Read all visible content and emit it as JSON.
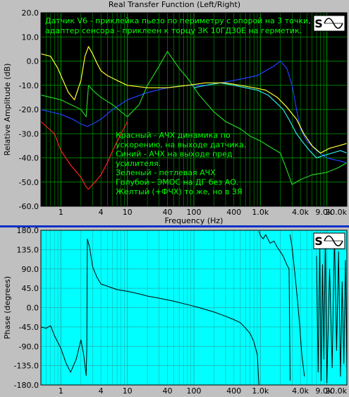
{
  "window_title": "Real Transfer Function (Left/Right)",
  "colors": {
    "top_plot_bg": "#000000",
    "bottom_plot_bg": "#00ffff",
    "grid_green": "#00a000",
    "annotation_text": "#00ff00",
    "divider": "#1030c8"
  },
  "logo_icon": "s-sine-wave-logo",
  "chart_data": [
    {
      "type": "line",
      "id": "amplitude",
      "title": "",
      "xlabel": "Frequency (Hz)",
      "ylabel": "Relative Amplitude (dB)",
      "x_scale": "log",
      "xlim": [
        0.5,
        20000
      ],
      "ylim": [
        -60,
        20
      ],
      "x_ticks": [
        {
          "value": 1,
          "label": "1"
        },
        {
          "value": 4,
          "label": "4"
        },
        {
          "value": 10,
          "label": "10"
        },
        {
          "value": 40,
          "label": "40"
        },
        {
          "value": 100,
          "label": "100"
        },
        {
          "value": 400,
          "label": "400"
        },
        {
          "value": 1000,
          "label": "1.0k"
        },
        {
          "value": 4000,
          "label": "4.0k"
        },
        {
          "value": 9000,
          "label": "9.0k"
        },
        {
          "value": 20000,
          "label": "20.0k"
        }
      ],
      "y_ticks": [
        {
          "value": 20,
          "label": "20.0"
        },
        {
          "value": 10,
          "label": "10.0"
        },
        {
          "value": 0,
          "label": "0.0"
        },
        {
          "value": -10,
          "label": "-10.0"
        },
        {
          "value": -20,
          "label": "-20.0"
        },
        {
          "value": -30,
          "label": "-30.0"
        },
        {
          "value": -40,
          "label": "-40.0"
        },
        {
          "value": -50,
          "label": "-50.0"
        },
        {
          "value": -60,
          "label": "-60.0"
        }
      ],
      "header_note": [
        "Датчик V6 - приклейка пьезо по периметру с опорой на 3 точки,",
        "адаптер сенсора - приклеен к торцу ЗК 10ГД30Е на герметик."
      ],
      "legend_note": [
        "Красный - АЧХ динамика по",
        "ускорению, на выходе датчика.",
        "Синий - АЧХ на выходе пред",
        "усилителя.",
        "Зеленый - петлевая АЧХ",
        "Голубой - ЭМОС на ДГ без АО.",
        "Желтый (+ФЧХ) то же, но в ЗЯ"
      ],
      "series": [
        {
          "color": "#ff2020",
          "x": [
            0.5,
            0.8,
            1.0,
            1.4,
            2.0,
            2.4,
            2.6,
            3.0,
            3.5,
            4.0,
            5.0,
            6.0,
            8.0,
            10.0
          ],
          "y": [
            -25,
            -30,
            -37,
            -43,
            -48,
            -52,
            -53,
            -51,
            -49,
            -47,
            -42,
            -37,
            -30,
            -25
          ]
        },
        {
          "color": "#2040ff",
          "x": [
            0.5,
            0.7,
            1.0,
            1.5,
            2.0,
            2.5,
            3.0,
            4,
            6,
            10,
            20,
            40,
            80,
            150,
            250,
            400,
            600,
            900,
            1200,
            1600,
            2000,
            2500,
            3000,
            3500,
            4000,
            5000,
            7000,
            10000,
            20000
          ],
          "y": [
            -20,
            -21,
            -22,
            -24,
            -26,
            -27,
            -26,
            -24,
            -20,
            -16,
            -13,
            -11,
            -10,
            -10,
            -9,
            -8,
            -7,
            -6,
            -4,
            -2,
            0,
            -3,
            -10,
            -20,
            -28,
            -33,
            -37,
            -40,
            -42
          ]
        },
        {
          "color": "#20d020",
          "x": [
            0.5,
            1.0,
            2.0,
            2.4,
            2.6,
            3.0,
            4,
            6,
            10,
            15,
            20,
            30,
            40,
            60,
            80,
            120,
            200,
            300,
            500,
            700,
            1000,
            1500,
            2000,
            2500,
            3000,
            4000,
            6000,
            10000,
            15000,
            20000
          ],
          "y": [
            -14,
            -16,
            -20,
            -23,
            -10,
            -12,
            -15,
            -18,
            -23,
            -18,
            -10,
            -2,
            4,
            -3,
            -7,
            -14,
            -21,
            -25,
            -28,
            -31,
            -33,
            -36,
            -38,
            -45,
            -51,
            -49,
            -47,
            -46,
            -44,
            -42
          ]
        },
        {
          "color": "#30e8e8",
          "x": [
            100,
            150,
            250,
            400,
            600,
            900,
            1300,
            1700,
            2200,
            2800,
            3500,
            4200,
            5500,
            7000,
            9000,
            12000,
            16000,
            20000
          ],
          "y": [
            -11,
            -10,
            -9,
            -10,
            -11,
            -12,
            -14,
            -17,
            -20,
            -25,
            -30,
            -33,
            -37,
            -40,
            -39,
            -38,
            -37,
            -38
          ]
        },
        {
          "color": "#ffff30",
          "x": [
            0.5,
            0.7,
            0.9,
            1.0,
            1.3,
            1.6,
            2.0,
            2.3,
            2.6,
            3.0,
            3.5,
            4.0,
            5,
            7,
            10,
            20,
            40,
            80,
            150,
            300,
            500,
            800,
            1200,
            1800,
            2500,
            3500,
            4500,
            6000,
            8000,
            11000,
            15000,
            20000
          ],
          "y": [
            3,
            2,
            -3,
            -6,
            -13,
            -16,
            -8,
            2,
            6,
            3,
            -1,
            -4,
            -6,
            -8,
            -10,
            -11,
            -11,
            -10,
            -9,
            -9,
            -10,
            -11,
            -12,
            -15,
            -19,
            -24,
            -30,
            -35,
            -38,
            -36,
            -35,
            -34
          ]
        }
      ]
    },
    {
      "type": "line",
      "id": "phase",
      "title": "",
      "xlabel": "",
      "ylabel": "Phase (degrees)",
      "x_scale": "log",
      "xlim": [
        0.5,
        20000
      ],
      "ylim": [
        -180,
        180
      ],
      "x_ticks": [
        {
          "value": 1,
          "label": "1"
        },
        {
          "value": 4,
          "label": "4"
        },
        {
          "value": 10,
          "label": "10"
        },
        {
          "value": 40,
          "label": "40"
        },
        {
          "value": 100,
          "label": "100"
        },
        {
          "value": 400,
          "label": "400"
        },
        {
          "value": 1000,
          "label": "1.0k"
        },
        {
          "value": 4000,
          "label": "4.0k"
        },
        {
          "value": 9000,
          "label": "9.0k"
        },
        {
          "value": 20000,
          "label": "20.0k"
        }
      ],
      "y_ticks": [
        {
          "value": 180,
          "label": "180.0"
        },
        {
          "value": 135,
          "label": "135.0"
        },
        {
          "value": 90,
          "label": "90.0"
        },
        {
          "value": 45,
          "label": "45.0"
        },
        {
          "value": 0,
          "label": "0.0"
        },
        {
          "value": -45,
          "label": "-45.0"
        },
        {
          "value": -90,
          "label": "-90.0"
        },
        {
          "value": -135,
          "label": "-135.0"
        },
        {
          "value": -180,
          "label": "-180.0"
        }
      ],
      "series": [
        {
          "color": "#000000",
          "x": [
            0.5,
            0.6,
            0.7,
            0.8,
            1.0,
            1.2,
            1.4,
            1.7,
            2.0,
            2.2,
            2.4,
            2.45,
            2.5,
            2.7,
            3.0,
            3.5,
            4.0,
            5,
            7,
            10,
            15,
            20,
            30,
            50,
            80,
            120,
            200,
            300,
            400,
            500,
            600,
            700,
            800,
            900,
            950
          ],
          "y": [
            -45,
            -48,
            -42,
            -65,
            -95,
            -130,
            -150,
            -120,
            -75,
            -110,
            -158,
            -100,
            160,
            140,
            95,
            70,
            55,
            50,
            42,
            38,
            32,
            27,
            22,
            15,
            7,
            0,
            -10,
            -20,
            -28,
            -35,
            -48,
            -60,
            -80,
            -110,
            -180
          ]
        },
        {
          "color": "#000000",
          "x": [
            950,
            1000,
            1100,
            1200,
            1400,
            1600,
            1800,
            2000,
            2200,
            2500,
            2700,
            2800
          ],
          "y": [
            178,
            168,
            160,
            170,
            150,
            155,
            140,
            130,
            120,
            100,
            90,
            -170
          ]
        },
        {
          "color": "#000000",
          "x": [
            2800,
            3000,
            3300,
            3600,
            3900,
            4200,
            4600
          ],
          "y": [
            170,
            140,
            80,
            20,
            -40,
            -110,
            -160
          ]
        },
        {
          "color": "#000000",
          "x": [
            7000,
            7400,
            7800,
            8200,
            8600,
            9000,
            9500,
            10000,
            11000,
            12000,
            13000,
            14000,
            15000,
            16000,
            17000,
            18000,
            19000,
            20000
          ],
          "y": [
            120,
            -150,
            140,
            -170,
            100,
            -120,
            150,
            -175,
            90,
            -140,
            170,
            -100,
            130,
            -160,
            60,
            -130,
            110,
            -150
          ]
        }
      ]
    }
  ]
}
